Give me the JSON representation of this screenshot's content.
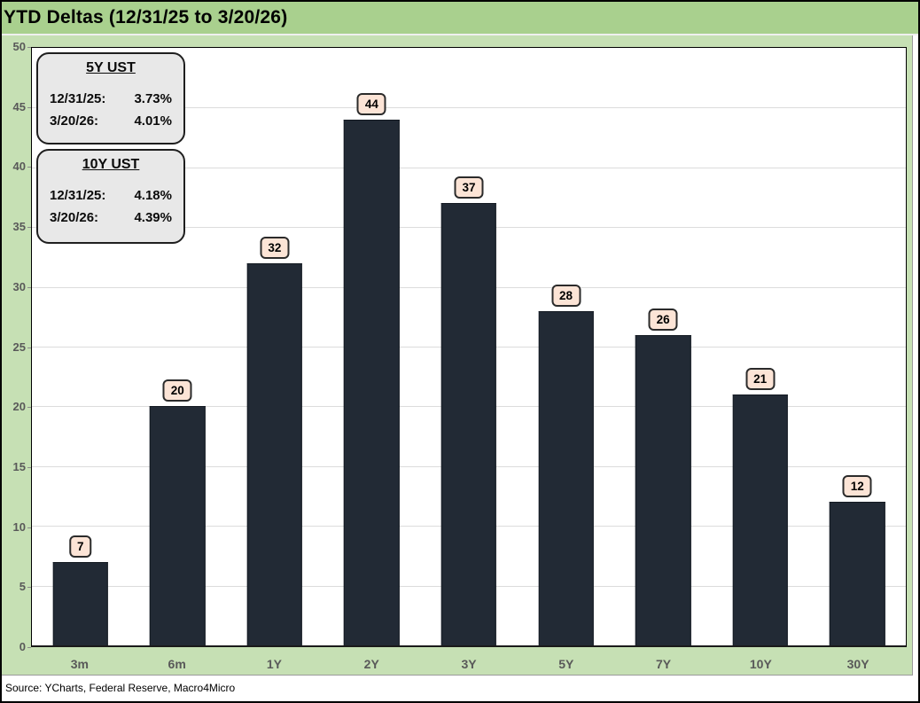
{
  "title": "YTD Deltas (12/31/25 to 3/20/26)",
  "source": "Source: YCharts, Federal Reserve, Macro4Micro",
  "legend_boxes": [
    {
      "title": "5Y UST",
      "rows": [
        {
          "date": "12/31/25:",
          "value": "3.73%"
        },
        {
          "date": "3/20/26:",
          "value": "4.01%"
        }
      ]
    },
    {
      "title": "10Y UST",
      "rows": [
        {
          "date": "12/31/25:",
          "value": "4.18%"
        },
        {
          "date": "3/20/26:",
          "value": "4.39%"
        }
      ]
    }
  ],
  "chart_data": {
    "type": "bar",
    "title": "YTD Deltas (12/31/25 to 3/20/26)",
    "categories": [
      "3m",
      "6m",
      "1Y",
      "2Y",
      "3Y",
      "5Y",
      "7Y",
      "10Y",
      "30Y"
    ],
    "values": [
      7,
      20,
      32,
      44,
      37,
      28,
      26,
      21,
      12
    ],
    "xlabel": "",
    "ylabel": "",
    "ylim": [
      0,
      50
    ],
    "yticks": [
      0,
      5,
      10,
      15,
      20,
      25,
      30,
      35,
      40,
      45,
      50
    ],
    "grid": true,
    "legend_position": "none",
    "data_labels": true
  },
  "colors": {
    "title_band": "#a9d08e",
    "chart_background": "#c6e0b4",
    "plot_background": "#ffffff",
    "bar": "#222a35",
    "data_label_box": "#fce4d6",
    "legend_box": "#e8e8e8",
    "axis_text": "#595959",
    "gridline": "#dcdcdc"
  }
}
